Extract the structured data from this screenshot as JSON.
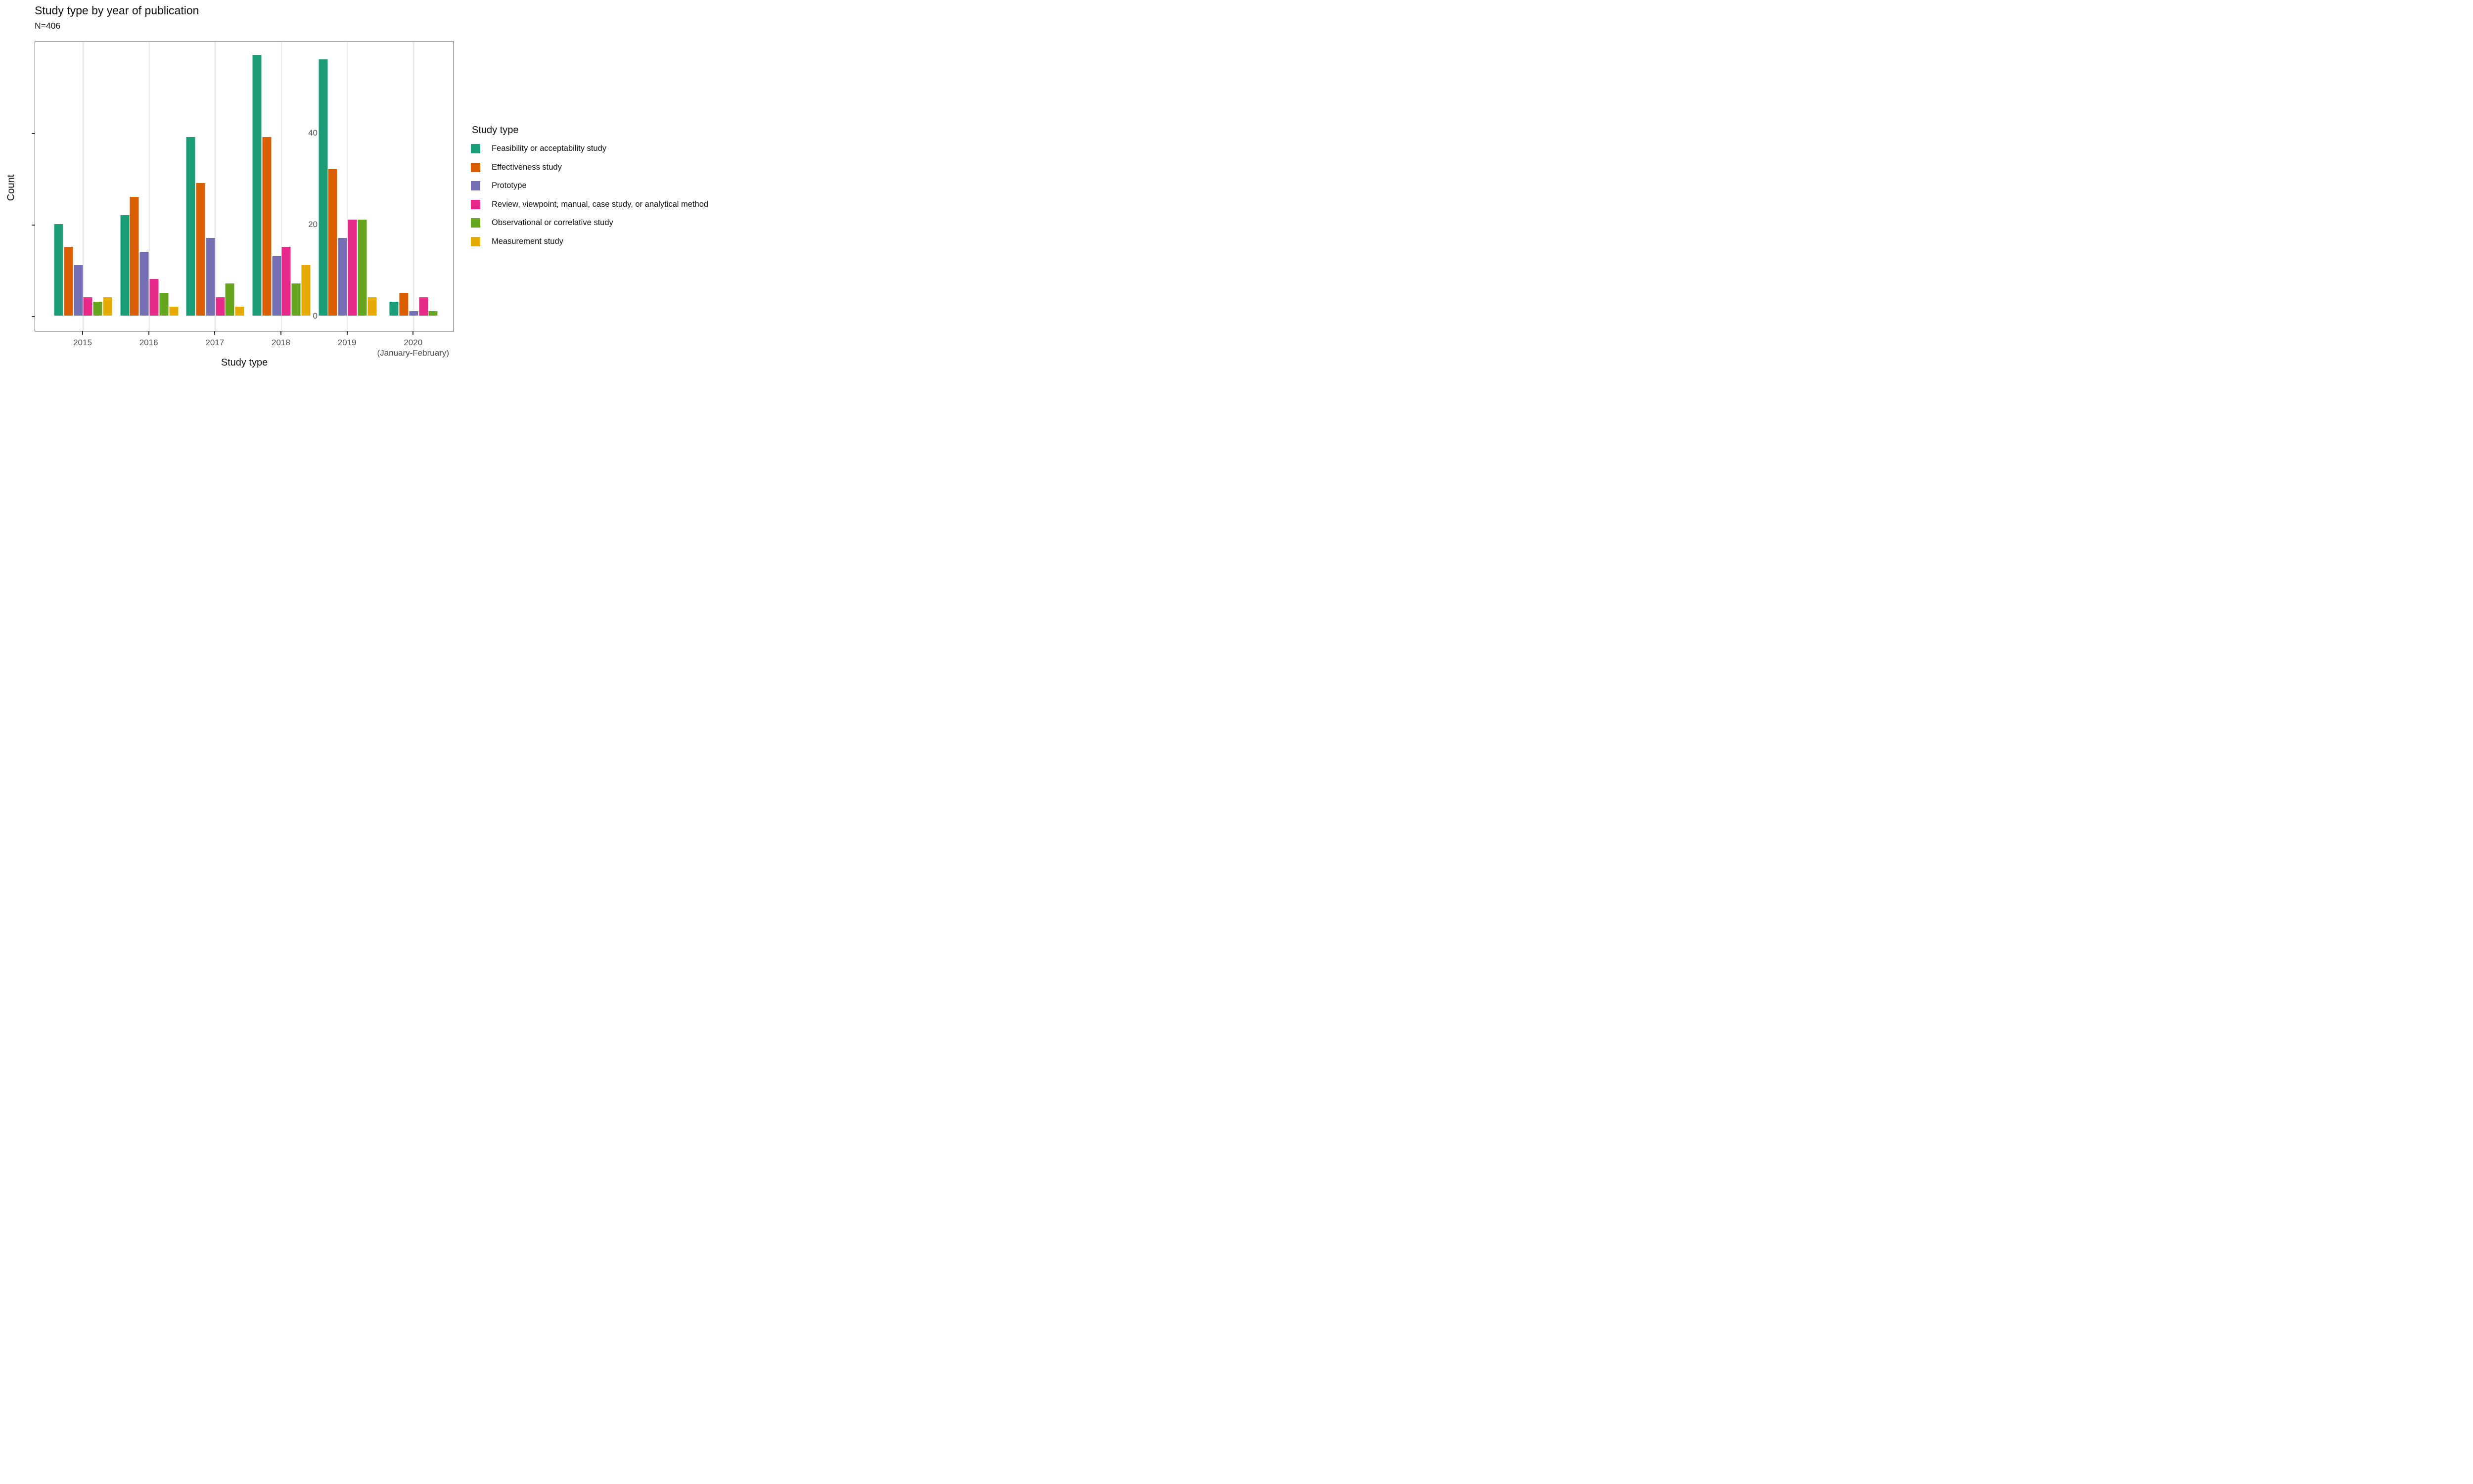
{
  "header": {
    "title": "Study type by year of publication",
    "subtitle": "N=406"
  },
  "chart_data": {
    "type": "bar",
    "grouped": true,
    "title": "Study type by year of publication",
    "subtitle": "N=406",
    "xlabel": "Study type",
    "ylabel": "Count",
    "categories": [
      "2015",
      "2016",
      "2017",
      "2018",
      "2019",
      "2020"
    ],
    "category_sublabels": [
      "",
      "",
      "",
      "",
      "",
      "(January-February)"
    ],
    "yticks": [
      0,
      20,
      40
    ],
    "ylim": [
      0,
      60
    ],
    "grid": "vertical-major-only",
    "legend_position": "right",
    "legend_title": "Study type",
    "series": [
      {
        "name": "Feasibility or acceptability study",
        "color": "#1B9E77",
        "values": [
          20,
          22,
          39,
          57,
          56,
          3
        ]
      },
      {
        "name": "Effectiveness study",
        "color": "#D95F02",
        "values": [
          15,
          26,
          29,
          39,
          32,
          5
        ]
      },
      {
        "name": "Prototype",
        "color": "#7570B3",
        "values": [
          11,
          14,
          17,
          13,
          17,
          1
        ]
      },
      {
        "name": "Review, viewpoint, manual, case study, or analytical method",
        "color": "#E7298A",
        "values": [
          4,
          8,
          4,
          15,
          21,
          4
        ]
      },
      {
        "name": "Observational or correlative study",
        "color": "#66A61E",
        "values": [
          3,
          5,
          7,
          7,
          21,
          1
        ]
      },
      {
        "name": "Measurement study",
        "color": "#E6AB02",
        "values": [
          4,
          2,
          2,
          11,
          4,
          null
        ]
      }
    ]
  },
  "style_colors": {
    "axis_text": "#4d4d4d",
    "axis_line": "#333333",
    "gridline": "#e9e9e9",
    "text": "#111111",
    "panel_background": "#ffffff"
  }
}
